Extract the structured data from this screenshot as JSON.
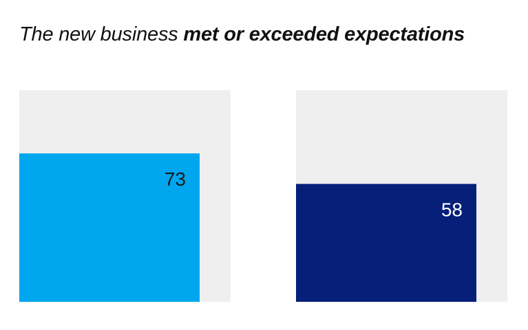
{
  "title": {
    "part1": "The new business ",
    "part2": "met or exceeded expectations"
  },
  "colors": {
    "panel": "#efeff0",
    "bar_1": "#00a6ee",
    "bar_2": "#061f78",
    "label_on_light": "#1a1a1a",
    "label_on_dark": "#ffffff"
  },
  "chart_data": {
    "type": "bar",
    "title": "The new business met or exceeded expectations",
    "categories": [
      "",
      ""
    ],
    "values": [
      73,
      58
    ],
    "ylim": [
      0,
      100
    ],
    "grid": false,
    "legend": "none",
    "data_labels": [
      "73",
      "58"
    ]
  }
}
